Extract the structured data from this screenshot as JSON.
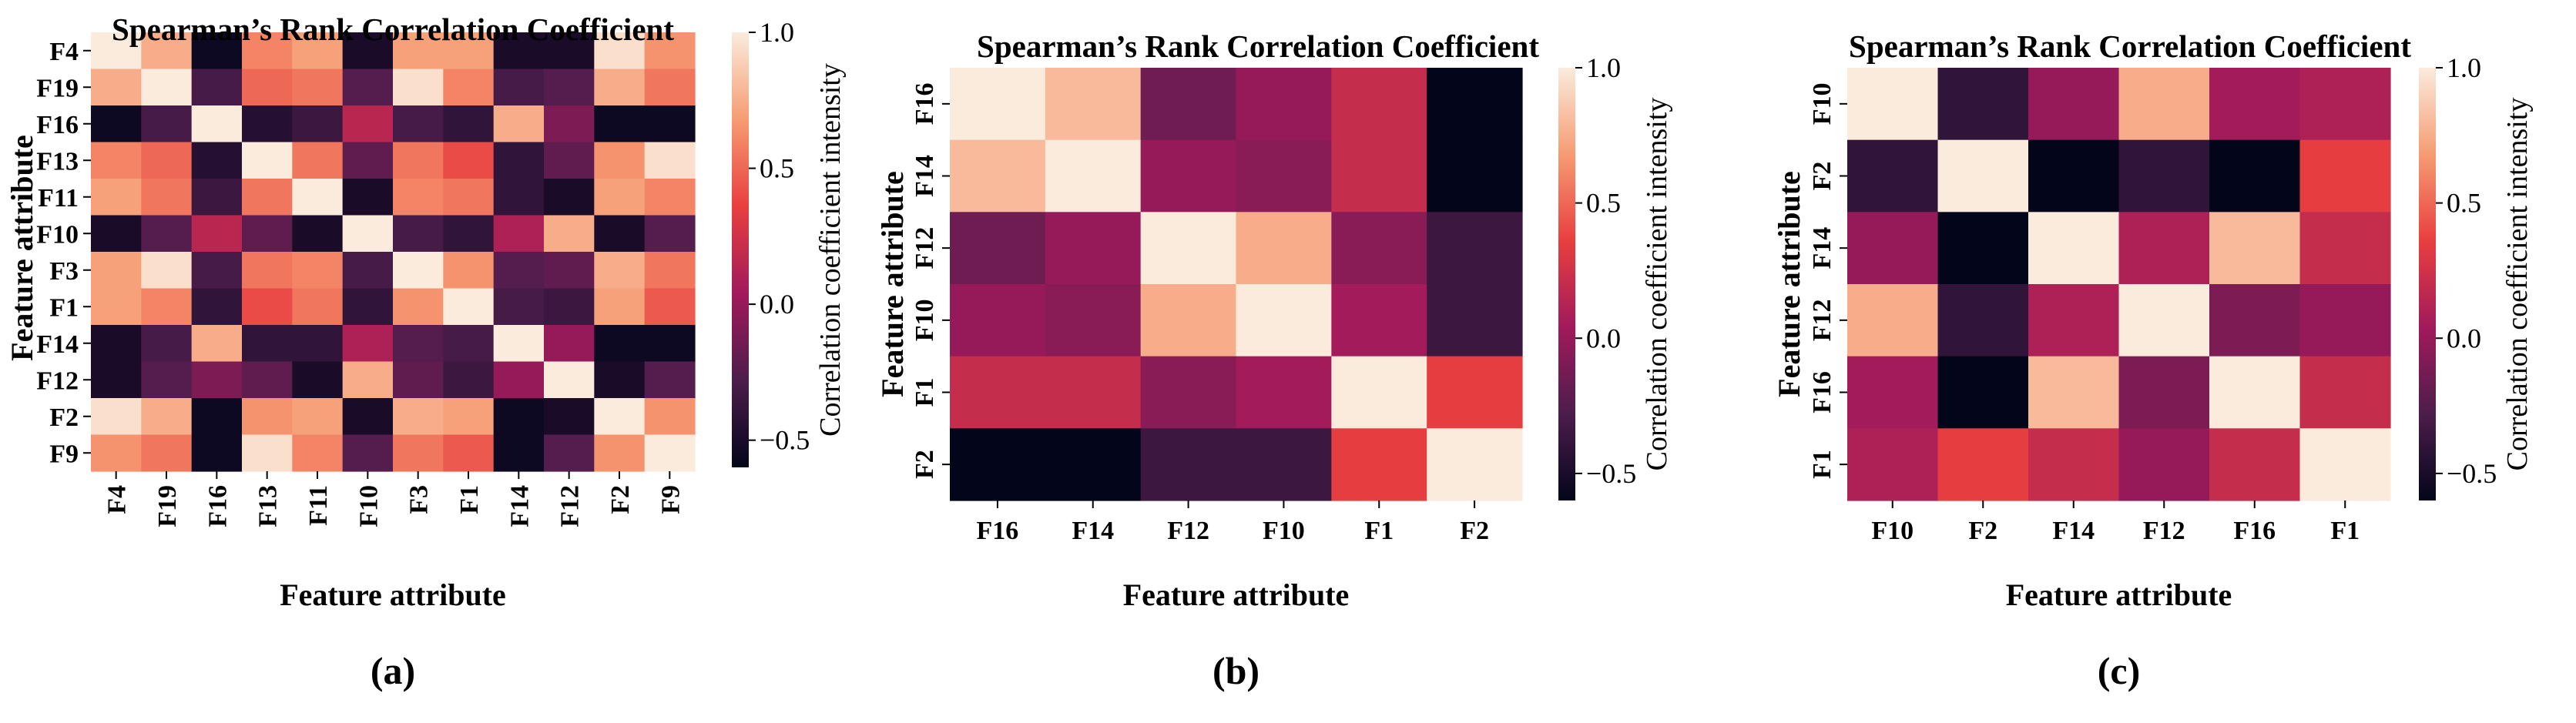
{
  "colorbar": {
    "label": "Correlation coefficient intensity",
    "ticks": [
      1.0,
      0.5,
      0.0,
      -0.5
    ],
    "tick_labels": [
      "1.0",
      "0.5",
      "0.0",
      "−0.5"
    ],
    "vmin": -0.6,
    "vmax": 1.0,
    "colormap": "rocket",
    "stops": [
      "#03051a",
      "#4c1d4b",
      "#a11a5b",
      "#e83f3f",
      "#f69c73",
      "#faebdd"
    ]
  },
  "chart_data": [
    {
      "type": "heatmap",
      "panel_label": "(a)",
      "title": "Spearman’s Rank Correlation Coefficient",
      "xlabel": "Feature attribute",
      "ylabel": "Feature attribute",
      "x_tick_orientation": "vertical",
      "y_tick_orientation": "horizontal",
      "categories": [
        "F4",
        "F19",
        "F16",
        "F13",
        "F11",
        "F10",
        "F3",
        "F1",
        "F14",
        "F12",
        "F2",
        "F9"
      ],
      "values": [
        [
          1.0,
          0.75,
          -0.55,
          0.6,
          0.7,
          -0.5,
          0.7,
          0.7,
          -0.5,
          -0.5,
          0.95,
          0.65
        ],
        [
          0.75,
          1.0,
          -0.3,
          0.5,
          0.55,
          -0.25,
          0.95,
          0.6,
          -0.3,
          -0.25,
          0.75,
          0.55
        ],
        [
          -0.55,
          -0.3,
          1.0,
          -0.45,
          -0.35,
          0.15,
          -0.3,
          -0.4,
          0.75,
          -0.1,
          -0.55,
          -0.55
        ],
        [
          0.6,
          0.5,
          -0.45,
          1.0,
          0.55,
          -0.2,
          0.55,
          0.4,
          -0.4,
          -0.2,
          0.65,
          0.95
        ],
        [
          0.7,
          0.55,
          -0.35,
          0.55,
          1.0,
          -0.5,
          0.6,
          0.55,
          -0.4,
          -0.5,
          0.7,
          0.6
        ],
        [
          -0.5,
          -0.25,
          0.15,
          -0.2,
          -0.5,
          1.0,
          -0.3,
          -0.4,
          0.1,
          0.75,
          -0.5,
          -0.25
        ],
        [
          0.7,
          0.95,
          -0.3,
          0.55,
          0.6,
          -0.3,
          1.0,
          0.65,
          -0.25,
          -0.2,
          0.75,
          0.55
        ],
        [
          0.7,
          0.6,
          -0.4,
          0.4,
          0.55,
          -0.4,
          0.65,
          1.0,
          -0.3,
          -0.35,
          0.7,
          0.45
        ],
        [
          -0.5,
          -0.3,
          0.75,
          -0.4,
          -0.4,
          0.1,
          -0.25,
          -0.3,
          1.0,
          0.0,
          -0.55,
          -0.55
        ],
        [
          -0.5,
          -0.25,
          -0.1,
          -0.2,
          -0.5,
          0.75,
          -0.2,
          -0.35,
          0.0,
          1.0,
          -0.5,
          -0.25
        ],
        [
          0.95,
          0.75,
          -0.55,
          0.65,
          0.7,
          -0.5,
          0.75,
          0.7,
          -0.55,
          -0.5,
          1.0,
          0.65
        ],
        [
          0.65,
          0.55,
          -0.55,
          0.95,
          0.6,
          -0.25,
          0.55,
          0.45,
          -0.55,
          -0.25,
          0.65,
          1.0
        ]
      ]
    },
    {
      "type": "heatmap",
      "panel_label": "(b)",
      "title": "Spearman’s Rank Correlation Coefficient",
      "xlabel": "Feature attribute",
      "ylabel": "Feature attribute",
      "x_tick_orientation": "horizontal",
      "y_tick_orientation": "vertical",
      "categories": [
        "F16",
        "F14",
        "F12",
        "F10",
        "F1",
        "F2"
      ],
      "values": [
        [
          1.0,
          0.8,
          -0.15,
          0.0,
          0.2,
          -0.6
        ],
        [
          0.8,
          1.0,
          0.0,
          -0.05,
          0.2,
          -0.6
        ],
        [
          -0.15,
          0.0,
          1.0,
          0.75,
          -0.05,
          -0.35
        ],
        [
          0.0,
          -0.05,
          0.75,
          1.0,
          0.05,
          -0.35
        ],
        [
          0.2,
          0.2,
          -0.05,
          0.05,
          1.0,
          0.35
        ],
        [
          -0.6,
          -0.6,
          -0.35,
          -0.35,
          0.35,
          1.0
        ]
      ]
    },
    {
      "type": "heatmap",
      "panel_label": "(c)",
      "title": "Spearman’s Rank Correlation Coefficient",
      "xlabel": "Feature attribute",
      "ylabel": "Feature attribute",
      "x_tick_orientation": "horizontal",
      "y_tick_orientation": "vertical",
      "categories": [
        "F10",
        "F2",
        "F14",
        "F12",
        "F16",
        "F1"
      ],
      "values": [
        [
          1.0,
          -0.4,
          0.0,
          0.75,
          0.05,
          0.1
        ],
        [
          -0.4,
          1.0,
          -0.6,
          -0.4,
          -0.6,
          0.35
        ],
        [
          0.0,
          -0.6,
          1.0,
          0.1,
          0.8,
          0.2
        ],
        [
          0.75,
          -0.4,
          0.1,
          1.0,
          -0.1,
          0.0
        ],
        [
          0.05,
          -0.6,
          0.8,
          -0.1,
          1.0,
          0.2
        ],
        [
          0.1,
          0.35,
          0.2,
          0.0,
          0.2,
          1.0
        ]
      ]
    }
  ]
}
